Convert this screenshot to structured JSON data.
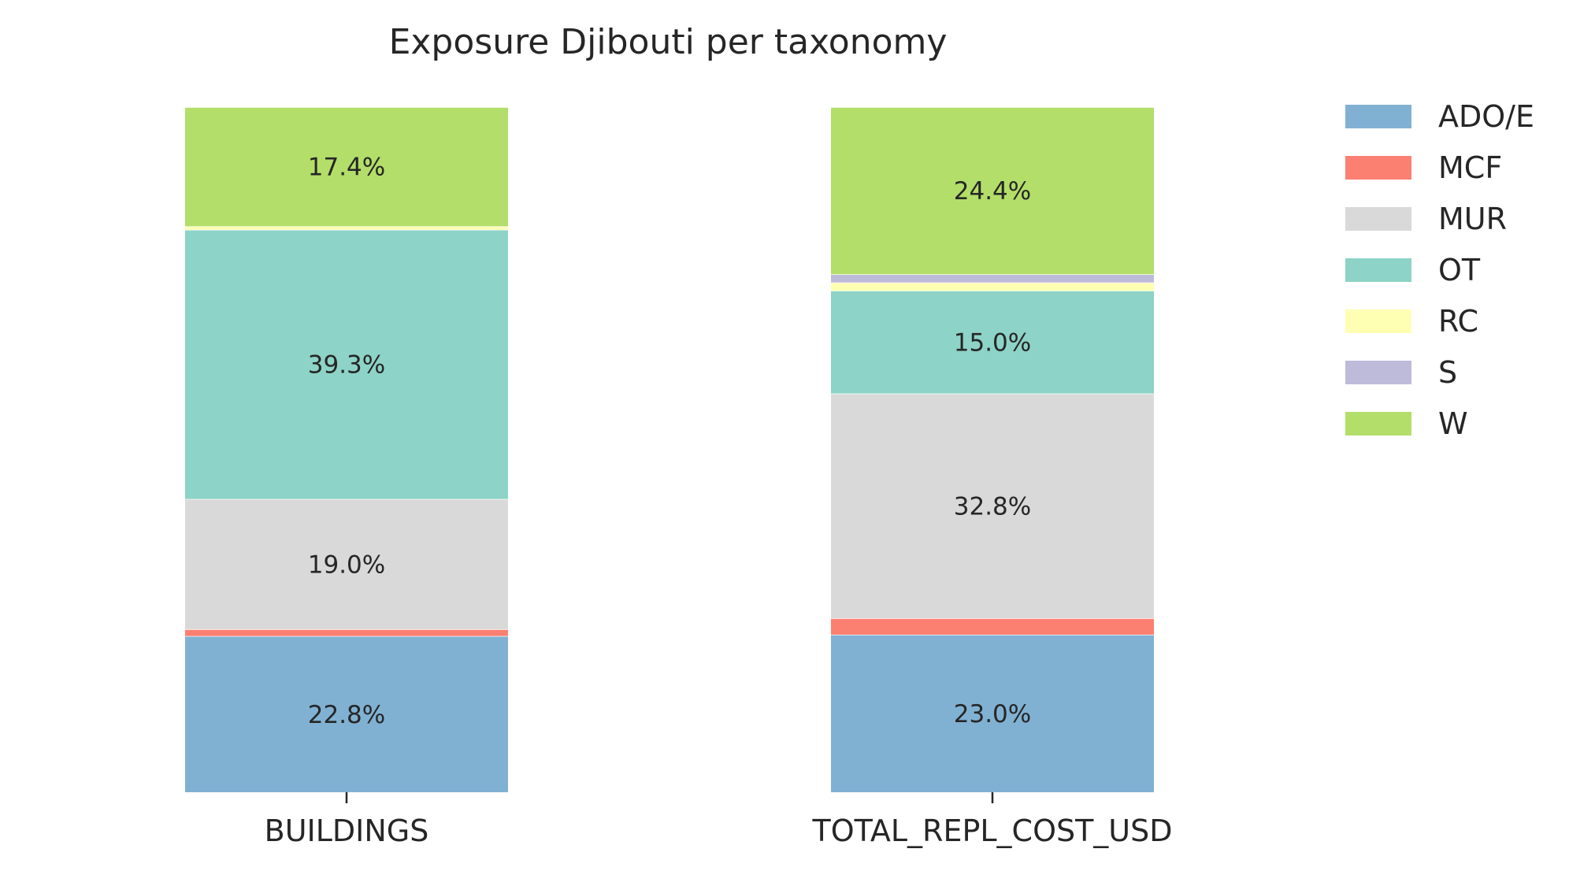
{
  "chart_data": {
    "type": "bar",
    "stacked": true,
    "title": "Exposure Djibouti per taxonomy",
    "xlabel": "",
    "ylabel": "",
    "categories": [
      "BUILDINGS",
      "TOTAL_REPL_COST_USD"
    ],
    "ylim": [
      0,
      100
    ],
    "grid": false,
    "legend_position": "right",
    "series": [
      {
        "name": "ADO/E",
        "color": "#80b1d3",
        "values": [
          22.8,
          23.0
        ],
        "labels": [
          "22.8%",
          "23.0%"
        ]
      },
      {
        "name": "MCF",
        "color": "#fb8072",
        "values": [
          1.0,
          2.4
        ],
        "labels": [
          "",
          ""
        ]
      },
      {
        "name": "MUR",
        "color": "#d9d9d9",
        "values": [
          19.0,
          32.8
        ],
        "labels": [
          "19.0%",
          "32.8%"
        ]
      },
      {
        "name": "OT",
        "color": "#8dd3c7",
        "values": [
          39.3,
          15.0
        ],
        "labels": [
          "39.3%",
          "15.0%"
        ]
      },
      {
        "name": "RC",
        "color": "#ffffb3",
        "values": [
          0.5,
          1.2
        ],
        "labels": [
          "",
          ""
        ]
      },
      {
        "name": "S",
        "color": "#bebada",
        "values": [
          0.0,
          1.2
        ],
        "labels": [
          "",
          ""
        ]
      },
      {
        "name": "W",
        "color": "#b3de69",
        "values": [
          17.4,
          24.4
        ],
        "labels": [
          "17.4%",
          "24.4%"
        ]
      }
    ]
  }
}
